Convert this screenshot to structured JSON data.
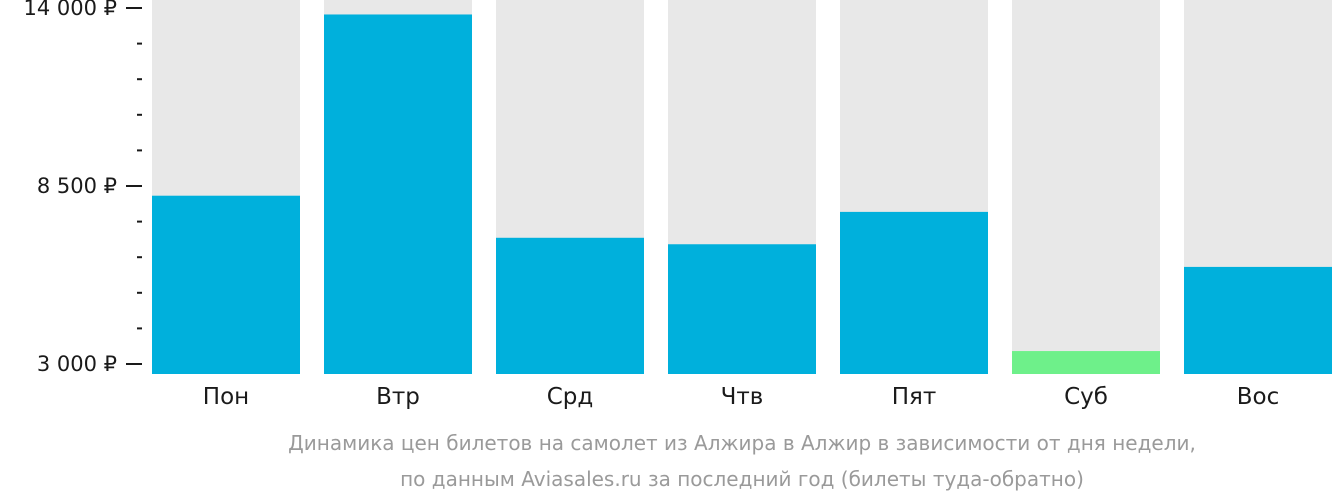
{
  "chart_data": {
    "type": "bar",
    "categories": [
      "Пон",
      "Втр",
      "Срд",
      "Чтв",
      "Пят",
      "Суб",
      "Вос"
    ],
    "values": [
      8200,
      13800,
      6900,
      6700,
      7700,
      3400,
      6000
    ],
    "highlight_index": 5,
    "ylim": [
      3000,
      14000
    ],
    "y_ticks": [
      {
        "value": 3000,
        "label": "3 000 ₽"
      },
      {
        "value": 8500,
        "label": "8 500 ₽"
      },
      {
        "value": 14000,
        "label": "14 000 ₽"
      }
    ],
    "y_minor_ticks": [
      4100,
      5200,
      6300,
      7400,
      9600,
      10700,
      11800,
      12900
    ],
    "colors": {
      "bar": "#00b0dc",
      "highlight": "#6ef08a",
      "track": "#e8e8e8",
      "axis": "#1a1a1a"
    },
    "caption": [
      "Динамика цен билетов на самолет из Алжира в Алжир в зависимости от дня недели,",
      "по данным Aviasales.ru за последний год (билеты туда-обратно)"
    ]
  }
}
